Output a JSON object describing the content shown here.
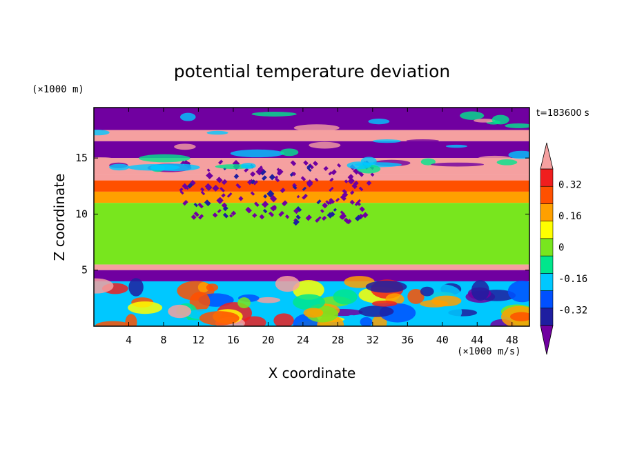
{
  "chart_data": {
    "type": "heatmap",
    "title": "potential temperature deviation",
    "xlabel": "X coordinate",
    "ylabel": "Z coordinate",
    "x_unit": "(×1000 m/s)",
    "y_unit": "(×1000 m)",
    "time_label": "t=183600 s",
    "xlim": [
      0,
      50
    ],
    "ylim": [
      0,
      19.5
    ],
    "x_ticks": [
      4,
      8,
      12,
      16,
      20,
      24,
      28,
      32,
      36,
      40,
      44,
      48
    ],
    "y_ticks": [
      5,
      10,
      15
    ],
    "colorbar": {
      "tick_labels": [
        "0.32",
        "0.16",
        "0",
        "-0.16",
        "-0.32"
      ],
      "tick_values": [
        0.32,
        0.16,
        0,
        -0.16,
        -0.32
      ],
      "levels": [
        -0.4,
        -0.32,
        -0.24,
        -0.16,
        -0.08,
        0,
        0.08,
        0.16,
        0.24,
        0.32,
        0.4
      ],
      "colors": [
        "#7000a0",
        "#1e1ea0",
        "#0050ff",
        "#00c8ff",
        "#00e68c",
        "#78e61e",
        "#ffff00",
        "#ffa000",
        "#ff5000",
        "#f01e1e",
        "#f5a0a0"
      ],
      "extend": "both"
    },
    "layers": [
      {
        "z": [
          17.5,
          19.5
        ],
        "value": -0.45
      },
      {
        "z": [
          16.5,
          17.5
        ],
        "value": 0.45
      },
      {
        "z": [
          15.0,
          16.5
        ],
        "value": -0.45
      },
      {
        "z": [
          13.5,
          15.0
        ],
        "value": 0.45
      },
      {
        "z": [
          13.0,
          13.5
        ],
        "value": 0.36
      },
      {
        "z": [
          12.0,
          13.0
        ],
        "value": 0.2
      },
      {
        "z": [
          11.0,
          12.0
        ],
        "value": 0.12
      },
      {
        "z": [
          5.5,
          11.0
        ],
        "value": -0.04
      },
      {
        "z": [
          5.0,
          5.5
        ],
        "value": 0.45
      },
      {
        "z": [
          4.0,
          5.0
        ],
        "value": -0.45
      },
      {
        "z": [
          0.0,
          4.0
        ],
        "value": -0.2
      }
    ]
  }
}
